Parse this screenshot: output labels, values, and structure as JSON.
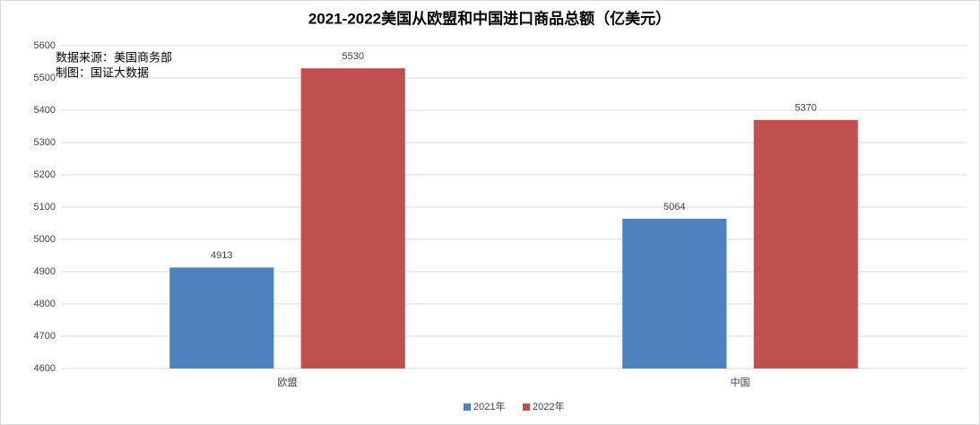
{
  "chart_data": {
    "type": "bar",
    "title": "2021-2022美国从欧盟和中国进口商品总额（亿美元）",
    "annotations": [
      "数据来源：美国商务部",
      "制图：国证大数据"
    ],
    "categories": [
      "欧盟",
      "中国"
    ],
    "series": [
      {
        "name": "2021年",
        "color": "#4f81bd",
        "values": [
          4913,
          5064
        ]
      },
      {
        "name": "2022年",
        "color": "#c0504d",
        "values": [
          5530,
          5370
        ]
      }
    ],
    "ylim": [
      4600,
      5600
    ],
    "yticks": [
      4600,
      4700,
      4800,
      4900,
      5000,
      5100,
      5200,
      5300,
      5400,
      5500,
      5600
    ],
    "grid": true,
    "legend": "bottom",
    "data_labels": true
  }
}
